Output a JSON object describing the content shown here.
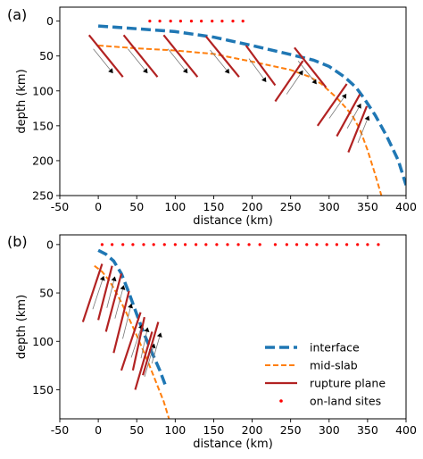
{
  "chart_data": [
    {
      "type": "line",
      "panel_label": "(a)",
      "xlabel": "distance (km)",
      "ylabel": "depth (km)",
      "xlim": [
        -50,
        400
      ],
      "ylim": [
        250,
        -20
      ],
      "y_inverted": true,
      "xticks": [
        -50,
        0,
        50,
        100,
        150,
        200,
        250,
        300,
        350,
        400
      ],
      "yticks": [
        0,
        50,
        100,
        150,
        200,
        250
      ],
      "grid": false,
      "series": [
        {
          "key": "interface",
          "color": "#1f77b4",
          "style": "dashed",
          "x": [
            0,
            50,
            100,
            150,
            200,
            250,
            280,
            300,
            320,
            335,
            345,
            360,
            375,
            390,
            400
          ],
          "y": [
            7,
            11,
            15,
            23,
            35,
            48,
            56,
            65,
            80,
            95,
            110,
            135,
            165,
            200,
            235
          ]
        },
        {
          "key": "mid_slab",
          "color": "#ff7f0e",
          "style": "dashed",
          "x": [
            0,
            50,
            100,
            150,
            200,
            250,
            275,
            290,
            300,
            310,
            320,
            330,
            340,
            350,
            360,
            368
          ],
          "y": [
            35,
            39,
            42,
            47,
            58,
            70,
            80,
            90,
            100,
            110,
            122,
            135,
            155,
            185,
            220,
            250
          ]
        },
        {
          "key": "on_land_sites",
          "color": "#ff0000",
          "style": "points",
          "x": [
            67,
            80,
            94,
            107,
            121,
            134,
            148,
            161,
            175,
            188
          ],
          "y": [
            0,
            0,
            0,
            0,
            0,
            0,
            0,
            0,
            0,
            0
          ]
        }
      ],
      "rupture_planes": [
        {
          "x1": -12,
          "y1": 20,
          "x2": 32,
          "y2": 80
        },
        {
          "x1": 33,
          "y1": 20,
          "x2": 77,
          "y2": 80
        },
        {
          "x1": 85,
          "y1": 20,
          "x2": 129,
          "y2": 80
        },
        {
          "x1": 140,
          "y1": 22,
          "x2": 183,
          "y2": 80
        },
        {
          "x1": 192,
          "y1": 35,
          "x2": 230,
          "y2": 92
        },
        {
          "x1": 255,
          "y1": 38,
          "x2": 296,
          "y2": 95
        },
        {
          "x1": 230,
          "y1": 115,
          "x2": 266,
          "y2": 57
        },
        {
          "x1": 285,
          "y1": 150,
          "x2": 323,
          "y2": 90
        },
        {
          "x1": 310,
          "y1": 165,
          "x2": 340,
          "y2": 105
        },
        {
          "x1": 325,
          "y1": 188,
          "x2": 349,
          "y2": 122
        }
      ]
    },
    {
      "type": "line",
      "panel_label": "(b)",
      "xlabel": "distance (km)",
      "ylabel": "depth (km)",
      "xlim": [
        -50,
        400
      ],
      "ylim": [
        180,
        -10
      ],
      "y_inverted": true,
      "xticks": [
        -50,
        0,
        50,
        100,
        150,
        200,
        250,
        300,
        350,
        400
      ],
      "yticks": [
        0,
        50,
        100,
        150
      ],
      "grid": false,
      "series": [
        {
          "key": "interface",
          "color": "#1f77b4",
          "style": "dashed",
          "x": [
            0,
            10,
            20,
            30,
            40,
            50,
            60,
            70,
            80,
            88
          ],
          "y": [
            6,
            10,
            17,
            30,
            50,
            72,
            93,
            112,
            130,
            147
          ]
        },
        {
          "key": "mid_slab",
          "color": "#ff7f0e",
          "style": "dashed",
          "x": [
            -5,
            5,
            15,
            25,
            35,
            45,
            55,
            65,
            75,
            85,
            92
          ],
          "y": [
            22,
            28,
            38,
            52,
            68,
            85,
            103,
            122,
            142,
            162,
            180
          ]
        },
        {
          "key": "on_land_sites",
          "color": "#ff0000",
          "style": "points",
          "x": [
            5,
            18,
            32,
            45,
            59,
            72,
            86,
            100,
            113,
            127,
            140,
            154,
            168,
            182,
            196,
            210,
            230,
            245,
            258,
            271,
            284,
            297,
            310,
            323,
            337,
            350,
            364
          ],
          "y": [
            0,
            0,
            0,
            0,
            0,
            0,
            0,
            0,
            0,
            0,
            0,
            0,
            0,
            0,
            0,
            0,
            0,
            0,
            0,
            0,
            0,
            0,
            0,
            0,
            0,
            0,
            0
          ]
        }
      ],
      "rupture_planes": [
        {
          "x1": -20,
          "y1": 80,
          "x2": 5,
          "y2": 20
        },
        {
          "x1": 0,
          "y1": 78,
          "x2": 18,
          "y2": 22
        },
        {
          "x1": 10,
          "y1": 90,
          "x2": 30,
          "y2": 30
        },
        {
          "x1": 20,
          "y1": 112,
          "x2": 40,
          "y2": 48
        },
        {
          "x1": 30,
          "y1": 130,
          "x2": 55,
          "y2": 70
        },
        {
          "x1": 45,
          "y1": 130,
          "x2": 60,
          "y2": 75
        },
        {
          "x1": 48,
          "y1": 150,
          "x2": 70,
          "y2": 90
        },
        {
          "x1": 58,
          "y1": 135,
          "x2": 78,
          "y2": 80
        }
      ]
    }
  ],
  "legend": {
    "placement": "bottom-right of panel (b)",
    "entries": [
      {
        "key": "interface",
        "label": "interface",
        "color": "#1f77b4",
        "style": "dashed"
      },
      {
        "key": "mid_slab",
        "label": "mid-slab",
        "color": "#ff7f0e",
        "style": "dashed"
      },
      {
        "key": "rupture_plane",
        "label": "rupture plane",
        "color": "#b22222",
        "style": "solid"
      },
      {
        "key": "on_land_sites",
        "label": "on-land sites",
        "color": "#ff0000",
        "style": "points"
      }
    ]
  }
}
